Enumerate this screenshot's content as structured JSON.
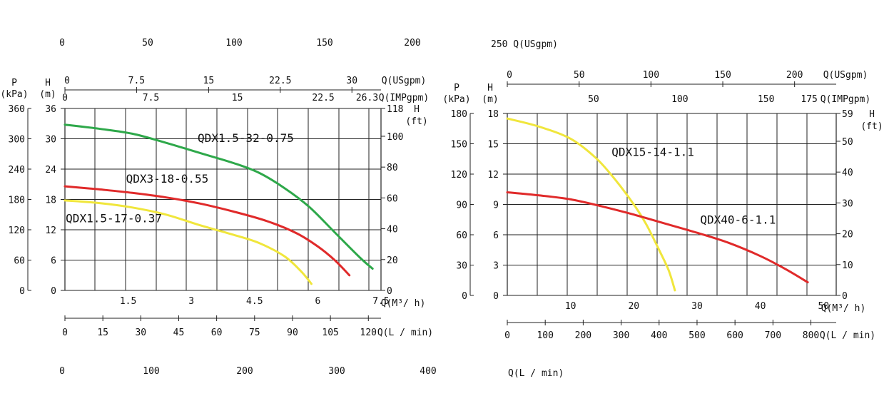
{
  "stray_labels": {
    "left_top": [
      "0",
      "50",
      "100",
      "150",
      "200"
    ],
    "left_bottom": [
      "0",
      "100",
      "200",
      "300",
      "400"
    ],
    "right_top": "250 Q(USgpm)",
    "right_bottom": "Q(L / min)"
  },
  "chart_data": [
    {
      "type": "line",
      "title": "",
      "xlabel": "Q(M³/ h)",
      "ylabel": "H (m)",
      "xlim": [
        0,
        7.5
      ],
      "ylim": [
        0,
        36
      ],
      "grid": true,
      "colors": {
        "yellow": "#f0e63c",
        "red": "#e02a2a",
        "green": "#2ea84a"
      },
      "axes": {
        "p_label": "P",
        "p_unit": "(kPa)",
        "h_label": "H",
        "h_unit": "(m)",
        "ft_label": "H",
        "ft_unit": "(ft)",
        "usgpm_label": "Q(USgpm)",
        "impgpm_label": "Q(IMPgpm)",
        "m3h_label": "Q(M³/ h)",
        "lmin_label": "Q(L / min)"
      },
      "ticks": {
        "p": [
          {
            "v": 0,
            "t": "0"
          },
          {
            "v": 6,
            "t": "60"
          },
          {
            "v": 12,
            "t": "120"
          },
          {
            "v": 18,
            "t": "180"
          },
          {
            "v": 24,
            "t": "240"
          },
          {
            "v": 30,
            "t": "300"
          },
          {
            "v": 36,
            "t": "360"
          }
        ],
        "h": [
          {
            "v": 0,
            "t": "0"
          },
          {
            "v": 6,
            "t": "6"
          },
          {
            "v": 12,
            "t": "12"
          },
          {
            "v": 18,
            "t": "18"
          },
          {
            "v": 24,
            "t": "24"
          },
          {
            "v": 30,
            "t": "30"
          },
          {
            "v": 36,
            "t": "36"
          }
        ],
        "ft": [
          {
            "v": 0,
            "t": "0"
          },
          {
            "v": 6.1,
            "t": "20"
          },
          {
            "v": 12.2,
            "t": "40"
          },
          {
            "v": 18.3,
            "t": "60"
          },
          {
            "v": 24.4,
            "t": "80"
          },
          {
            "v": 30.5,
            "t": "100"
          },
          {
            "v": 36,
            "t": "118"
          }
        ],
        "usgpm": [
          {
            "v": 0,
            "t": "0"
          },
          {
            "v": 1.7,
            "t": "7.5"
          },
          {
            "v": 3.41,
            "t": "15"
          },
          {
            "v": 5.11,
            "t": "22.5"
          },
          {
            "v": 6.81,
            "t": "30"
          }
        ],
        "impgpm": [
          {
            "v": 0,
            "t": "0"
          },
          {
            "v": 2.04,
            "t": "7.5"
          },
          {
            "v": 4.09,
            "t": "15"
          },
          {
            "v": 6.13,
            "t": "22.5"
          },
          {
            "v": 7.17,
            "t": "26.3"
          }
        ],
        "m3h": [
          {
            "v": 1.5,
            "t": "1.5"
          },
          {
            "v": 3,
            "t": "3"
          },
          {
            "v": 4.5,
            "t": "4.5"
          },
          {
            "v": 6,
            "t": "6"
          },
          {
            "v": 7.5,
            "t": "7.5"
          }
        ],
        "lmin": [
          {
            "v": 0,
            "t": "0"
          },
          {
            "v": 0.9,
            "t": "15"
          },
          {
            "v": 1.8,
            "t": "30"
          },
          {
            "v": 2.7,
            "t": "45"
          },
          {
            "v": 3.6,
            "t": "60"
          },
          {
            "v": 4.5,
            "t": "75"
          },
          {
            "v": 5.4,
            "t": "90"
          },
          {
            "v": 6.3,
            "t": "105"
          },
          {
            "v": 7.2,
            "t": "120"
          }
        ]
      },
      "series": [
        {
          "name": "QDX1.5-32-0.75",
          "color": "green",
          "label_at": [
            3.15,
            29.4
          ],
          "points": [
            [
              0,
              32.8
            ],
            [
              0.8,
              32
            ],
            [
              1.6,
              31
            ],
            [
              2.4,
              29.2
            ],
            [
              3.2,
              27.2
            ],
            [
              4.0,
              25.2
            ],
            [
              4.6,
              23.3
            ],
            [
              5.2,
              20.3
            ],
            [
              5.8,
              16.5
            ],
            [
              6.4,
              11.5
            ],
            [
              7.0,
              6.5
            ],
            [
              7.3,
              4.3
            ]
          ]
        },
        {
          "name": "QDX3-18-0.55",
          "color": "red",
          "label_at": [
            1.45,
            21.3
          ],
          "points": [
            [
              0,
              20.6
            ],
            [
              0.8,
              20
            ],
            [
              1.6,
              19.3
            ],
            [
              2.4,
              18.4
            ],
            [
              3.2,
              17.2
            ],
            [
              4.0,
              15.6
            ],
            [
              4.8,
              13.7
            ],
            [
              5.5,
              11.3
            ],
            [
              6.0,
              8.7
            ],
            [
              6.4,
              6
            ],
            [
              6.75,
              3
            ]
          ]
        },
        {
          "name": "QDX1.5-17-0.37",
          "color": "yellow",
          "label_at": [
            0.02,
            13.5
          ],
          "points": [
            [
              0,
              17.8
            ],
            [
              0.8,
              17.3
            ],
            [
              1.6,
              16.4
            ],
            [
              2.4,
              15
            ],
            [
              3.2,
              12.9
            ],
            [
              4.0,
              11
            ],
            [
              4.6,
              9.4
            ],
            [
              5.2,
              6.8
            ],
            [
              5.6,
              3.8
            ],
            [
              5.85,
              1.3
            ]
          ]
        }
      ]
    },
    {
      "type": "line",
      "title": "",
      "xlabel": "Q(M³/ h)",
      "ylabel": "H (m)",
      "xlim": [
        0,
        52
      ],
      "ylim": [
        0,
        18
      ],
      "grid": true,
      "axes": {
        "p_label": "P",
        "p_unit": "(kPa)",
        "h_label": "H",
        "h_unit": "(m)",
        "ft_label": "H",
        "ft_unit": "(ft)",
        "usgpm_label": "Q(USgpm)",
        "impgpm_label": "Q(IMPgpm)",
        "m3h_label": "Q(M³/ h)",
        "lmin_label": "Q(L / min)"
      },
      "ticks": {
        "p": [
          {
            "v": 0,
            "t": "0"
          },
          {
            "v": 3,
            "t": "30"
          },
          {
            "v": 6,
            "t": "60"
          },
          {
            "v": 9,
            "t": "90"
          },
          {
            "v": 12,
            "t": "120"
          },
          {
            "v": 15,
            "t": "150"
          },
          {
            "v": 18,
            "t": "180"
          }
        ],
        "h": [
          {
            "v": 0,
            "t": "0"
          },
          {
            "v": 3,
            "t": "3"
          },
          {
            "v": 6,
            "t": "6"
          },
          {
            "v": 9,
            "t": "9"
          },
          {
            "v": 12,
            "t": "12"
          },
          {
            "v": 15,
            "t": "15"
          },
          {
            "v": 18,
            "t": "18"
          }
        ],
        "ft": [
          {
            "v": 0,
            "t": "0"
          },
          {
            "v": 3.05,
            "t": "10"
          },
          {
            "v": 6.1,
            "t": "20"
          },
          {
            "v": 9.15,
            "t": "30"
          },
          {
            "v": 12.2,
            "t": "40"
          },
          {
            "v": 15.25,
            "t": "50"
          },
          {
            "v": 18,
            "t": "59"
          }
        ],
        "usgpm": [
          {
            "v": 0,
            "t": "0"
          },
          {
            "v": 11.36,
            "t": "50"
          },
          {
            "v": 22.71,
            "t": "100"
          },
          {
            "v": 34.07,
            "t": "150"
          },
          {
            "v": 45.42,
            "t": "200"
          }
        ],
        "impgpm": [
          {
            "v": 13.64,
            "t": "50"
          },
          {
            "v": 27.28,
            "t": "100"
          },
          {
            "v": 40.91,
            "t": "150"
          },
          {
            "v": 47.73,
            "t": "175"
          }
        ],
        "m3h": [
          {
            "v": 10,
            "t": "10"
          },
          {
            "v": 20,
            "t": "20"
          },
          {
            "v": 30,
            "t": "30"
          },
          {
            "v": 40,
            "t": "40"
          },
          {
            "v": 50,
            "t": "50"
          }
        ],
        "lmin": [
          {
            "v": 0,
            "t": "0"
          },
          {
            "v": 6,
            "t": "100"
          },
          {
            "v": 12,
            "t": "200"
          },
          {
            "v": 18,
            "t": "300"
          },
          {
            "v": 24,
            "t": "400"
          },
          {
            "v": 30,
            "t": "500"
          },
          {
            "v": 36,
            "t": "600"
          },
          {
            "v": 42,
            "t": "700"
          },
          {
            "v": 48,
            "t": "800"
          }
        ]
      },
      "series": [
        {
          "name": "QDX15-14-1.1",
          "color": "yellow",
          "label_at": [
            16.5,
            13.8
          ],
          "points": [
            [
              0,
              17.5
            ],
            [
              5,
              16.7
            ],
            [
              10,
              15.5
            ],
            [
              14,
              13.6
            ],
            [
              17,
              11.5
            ],
            [
              20,
              9
            ],
            [
              22,
              7
            ],
            [
              24,
              4.5
            ],
            [
              25.5,
              2.5
            ],
            [
              26.5,
              0.5
            ]
          ]
        },
        {
          "name": "QDX40-6-1.1",
          "color": "red",
          "label_at": [
            30.5,
            7.1
          ],
          "points": [
            [
              0,
              10.2
            ],
            [
              5,
              9.9
            ],
            [
              10,
              9.5
            ],
            [
              15,
              8.8
            ],
            [
              20,
              8
            ],
            [
              25,
              7.1
            ],
            [
              30,
              6.2
            ],
            [
              35,
              5.2
            ],
            [
              40,
              3.9
            ],
            [
              44,
              2.6
            ],
            [
              47.5,
              1.3
            ]
          ]
        }
      ]
    }
  ]
}
